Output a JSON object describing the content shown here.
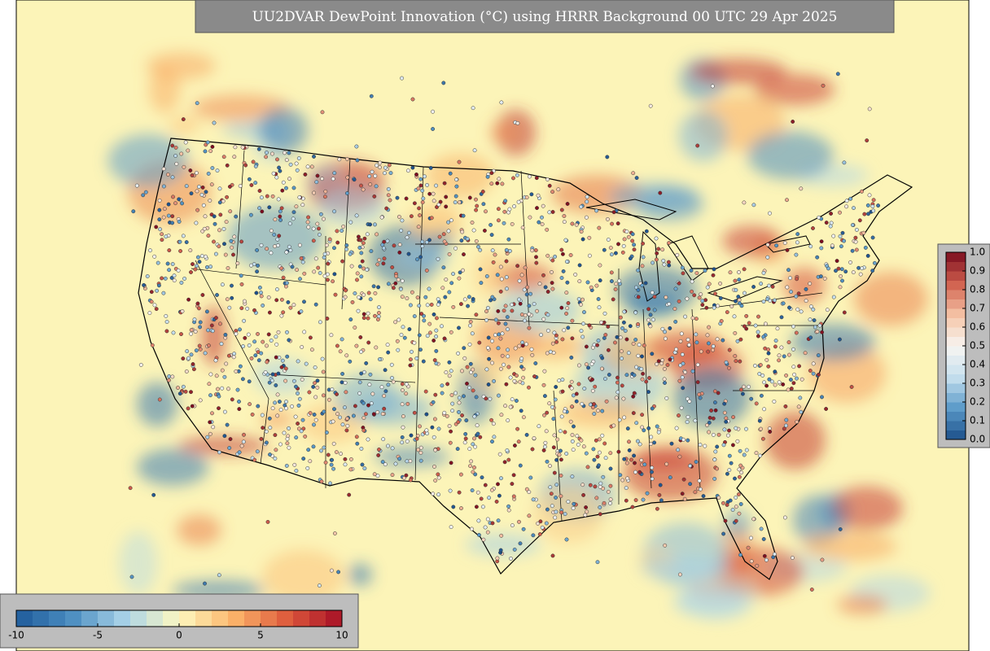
{
  "title": "UU2DVAR DewPoint Innovation (°C) using HRRR Background 00 UTC 29 Apr 2025",
  "innovation_colorbar": {
    "range": [
      -10,
      10
    ],
    "ticks": [
      -10,
      -5,
      0,
      5,
      10
    ],
    "colors": [
      "#1f5a9a",
      "#4a8cc0",
      "#a9d3e8",
      "#fdf8c0",
      "#fbb56a",
      "#de5a3c",
      "#a50f26"
    ]
  },
  "ratio_colorbar": {
    "range": [
      0,
      1
    ],
    "ticks": [
      {
        "value": 0,
        "label": "0.0"
      },
      0.1,
      0.2,
      0.3,
      0.4,
      0.5,
      0.6,
      0.7,
      0.8,
      0.9,
      {
        "value": 1,
        "label": "1.0"
      }
    ],
    "colors": [
      "#1c4f8a",
      "#5a9ac8",
      "#c6dfee",
      "#f7f5f2",
      "#f5c3a5",
      "#d0604e",
      "#7a0c1e"
    ]
  }
}
